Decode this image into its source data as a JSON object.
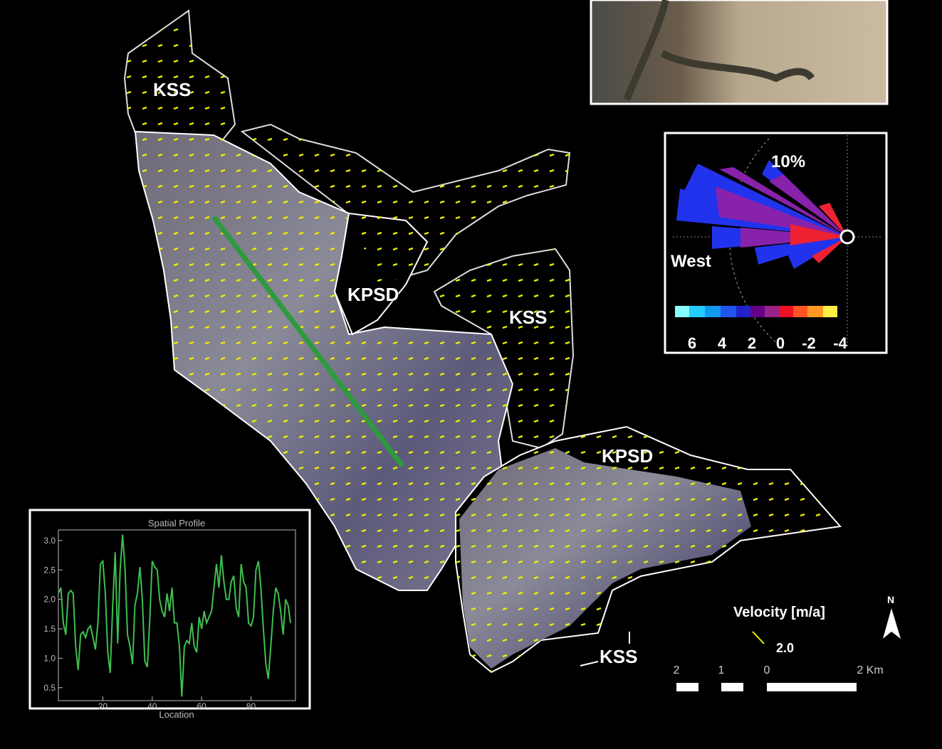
{
  "map": {
    "labels": [
      "KSS",
      "KPSD",
      "KSS",
      "KPSD",
      "KSS"
    ]
  },
  "wind_rose": {
    "percent_label": "10%",
    "direction_label": "West",
    "colorbar_labels": [
      "6",
      "4",
      "2",
      "0",
      "-2",
      "-4"
    ]
  },
  "velocity_legend": {
    "title": "Velocity [m/a]",
    "arrow_label": "2.0",
    "north": "N"
  },
  "scale_bar": {
    "labels": [
      "2",
      "1",
      "0",
      "2 Km"
    ]
  },
  "profile": {
    "type": "line",
    "title": "Spatial Profile",
    "x_label": "Location",
    "color": "#3fbf4f",
    "x": [
      2,
      3,
      4,
      5,
      6,
      7,
      8,
      9,
      10,
      11,
      12,
      13,
      14,
      15,
      16,
      17,
      18,
      19,
      20,
      21,
      22,
      23,
      24,
      25,
      26,
      27,
      28,
      29,
      30,
      31,
      32,
      33,
      34,
      35,
      36,
      37,
      38,
      39,
      40,
      41,
      42,
      43,
      44,
      45,
      46,
      47,
      48,
      49,
      50,
      51,
      52,
      53,
      54,
      55,
      56,
      57,
      58,
      59,
      60,
      61,
      62,
      63,
      64,
      65,
      66,
      67,
      68,
      69,
      70,
      71,
      72,
      73,
      74,
      75,
      76,
      77,
      78,
      79,
      80,
      81,
      82,
      83,
      84,
      85,
      86,
      87,
      88,
      89,
      90,
      91,
      92,
      93,
      94,
      95,
      96
    ],
    "values": [
      2.1,
      2.2,
      1.6,
      1.4,
      2.1,
      2.15,
      2.1,
      1.2,
      0.8,
      1.4,
      1.45,
      1.35,
      1.5,
      1.55,
      1.35,
      1.15,
      1.6,
      2.6,
      2.65,
      2.1,
      1.1,
      0.75,
      1.9,
      2.8,
      1.25,
      2.5,
      3.1,
      2.5,
      1.4,
      1.2,
      0.9,
      1.9,
      2.1,
      2.55,
      2.0,
      0.95,
      0.85,
      1.65,
      2.65,
      2.55,
      2.5,
      2.0,
      1.8,
      1.7,
      2.1,
      1.8,
      2.2,
      1.6,
      1.6,
      1.2,
      0.35,
      1.2,
      1.3,
      1.25,
      1.6,
      1.2,
      1.1,
      1.7,
      1.5,
      1.8,
      1.6,
      1.7,
      1.8,
      2.2,
      2.6,
      2.2,
      2.75,
      2.3,
      2.0,
      2.0,
      2.3,
      2.4,
      1.85,
      1.7,
      2.6,
      2.3,
      2.2,
      1.6,
      1.55,
      1.7,
      2.5,
      2.65,
      2.2,
      1.5,
      0.9,
      0.65,
      1.2,
      1.8,
      2.2,
      2.1,
      1.8,
      1.4,
      2.0,
      1.9,
      1.6
    ],
    "xlim": [
      2,
      98
    ],
    "ylim": [
      0.28,
      3.18
    ],
    "xticks": [
      20,
      40,
      60,
      80
    ],
    "yticks": [
      0.5,
      {
        "value": 1.0,
        "label": "1.0"
      },
      1.5,
      {
        "value": 2.0,
        "label": "2.0"
      },
      2.5,
      {
        "value": 3.0,
        "label": "3.0"
      }
    ]
  }
}
